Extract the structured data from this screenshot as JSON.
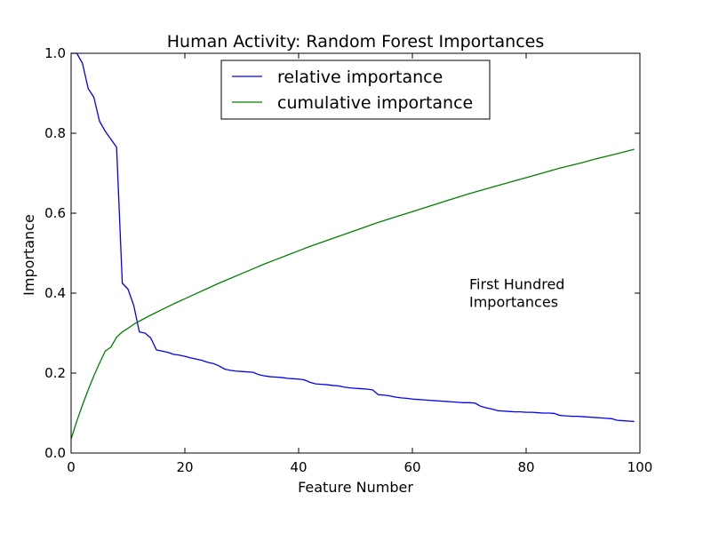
{
  "chart_data": {
    "type": "line",
    "title": "Human Activity: Random Forest Importances",
    "xlabel": "Feature Number",
    "ylabel": "Importance",
    "xlim": [
      0,
      100
    ],
    "ylim": [
      0.0,
      1.0
    ],
    "xticks": [
      0,
      20,
      40,
      60,
      80,
      100
    ],
    "yticks": [
      0.0,
      0.2,
      0.4,
      0.6,
      0.8,
      1.0
    ],
    "xtick_labels": [
      "0",
      "20",
      "40",
      "60",
      "80",
      "100"
    ],
    "ytick_labels": [
      "0.0",
      "0.2",
      "0.4",
      "0.6",
      "0.8",
      "1.0"
    ],
    "grid": false,
    "legend_position": "top-center",
    "annotation": {
      "lines": [
        "First Hundred",
        "Importances"
      ],
      "x": 70,
      "y": 0.41
    },
    "series": [
      {
        "name": "relative importance",
        "color": "#0000ff",
        "x": [
          0,
          1,
          2,
          3,
          4,
          5,
          6,
          7,
          8,
          9,
          10,
          11,
          12,
          13,
          14,
          15,
          16,
          17,
          18,
          19,
          20,
          21,
          22,
          23,
          24,
          25,
          26,
          27,
          28,
          29,
          30,
          31,
          32,
          33,
          34,
          35,
          36,
          37,
          38,
          39,
          40,
          41,
          42,
          43,
          44,
          45,
          46,
          47,
          48,
          49,
          50,
          51,
          52,
          53,
          54,
          55,
          56,
          57,
          58,
          59,
          60,
          61,
          62,
          63,
          64,
          65,
          66,
          67,
          68,
          69,
          70,
          71,
          72,
          73,
          74,
          75,
          76,
          77,
          78,
          79,
          80,
          81,
          82,
          83,
          84,
          85,
          86,
          87,
          88,
          89,
          90,
          91,
          92,
          93,
          94,
          95,
          96,
          97,
          98,
          99
        ],
        "values": [
          1.0,
          1.0,
          0.975,
          0.912,
          0.89,
          0.83,
          0.805,
          0.785,
          0.765,
          0.425,
          0.41,
          0.37,
          0.303,
          0.3,
          0.288,
          0.258,
          0.255,
          0.252,
          0.247,
          0.245,
          0.242,
          0.238,
          0.235,
          0.232,
          0.227,
          0.224,
          0.218,
          0.21,
          0.207,
          0.205,
          0.204,
          0.203,
          0.202,
          0.196,
          0.193,
          0.191,
          0.19,
          0.189,
          0.187,
          0.186,
          0.185,
          0.183,
          0.177,
          0.173,
          0.172,
          0.171,
          0.169,
          0.168,
          0.165,
          0.163,
          0.162,
          0.161,
          0.16,
          0.158,
          0.146,
          0.145,
          0.143,
          0.14,
          0.138,
          0.137,
          0.135,
          0.134,
          0.133,
          0.132,
          0.131,
          0.13,
          0.129,
          0.128,
          0.127,
          0.126,
          0.126,
          0.125,
          0.117,
          0.113,
          0.11,
          0.106,
          0.105,
          0.104,
          0.103,
          0.103,
          0.102,
          0.102,
          0.101,
          0.1,
          0.1,
          0.099,
          0.094,
          0.093,
          0.092,
          0.092,
          0.091,
          0.09,
          0.089,
          0.088,
          0.087,
          0.086,
          0.082,
          0.081,
          0.08,
          0.079
        ]
      },
      {
        "name": "cumulative importance",
        "color": "#008000",
        "x": [
          0,
          1,
          2,
          3,
          4,
          5,
          6,
          7,
          8,
          9,
          10,
          11,
          12,
          14,
          16,
          18,
          20,
          22,
          24,
          26,
          28,
          30,
          32,
          34,
          36,
          38,
          40,
          42,
          44,
          46,
          48,
          50,
          52,
          54,
          56,
          58,
          60,
          62,
          64,
          66,
          68,
          70,
          72,
          74,
          76,
          78,
          80,
          82,
          84,
          86,
          88,
          90,
          92,
          94,
          96,
          98,
          99
        ],
        "values": [
          0.035,
          0.08,
          0.12,
          0.158,
          0.193,
          0.225,
          0.255,
          0.265,
          0.29,
          0.303,
          0.312,
          0.322,
          0.33,
          0.345,
          0.359,
          0.373,
          0.386,
          0.399,
          0.412,
          0.425,
          0.437,
          0.449,
          0.461,
          0.473,
          0.484,
          0.495,
          0.506,
          0.517,
          0.527,
          0.537,
          0.547,
          0.557,
          0.567,
          0.577,
          0.586,
          0.595,
          0.604,
          0.613,
          0.622,
          0.631,
          0.64,
          0.649,
          0.657,
          0.665,
          0.673,
          0.681,
          0.689,
          0.697,
          0.705,
          0.713,
          0.72,
          0.727,
          0.735,
          0.742,
          0.749,
          0.756,
          0.76
        ]
      }
    ]
  }
}
